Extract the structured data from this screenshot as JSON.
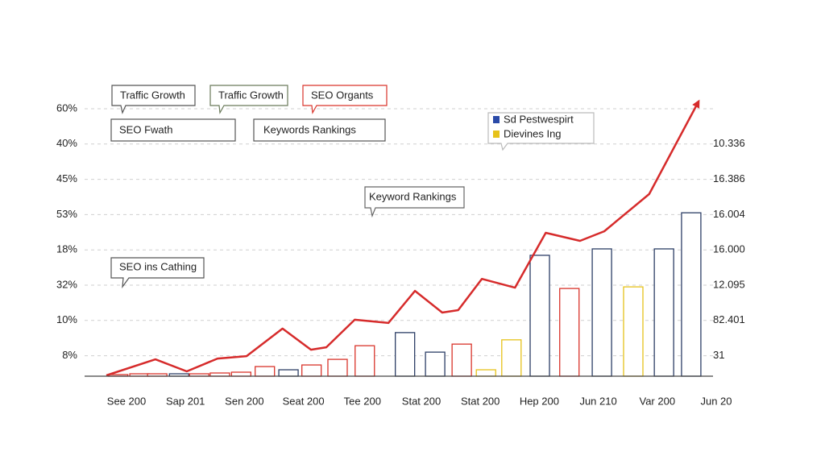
{
  "chart_data": {
    "type": "bar_line",
    "annotations": [
      "Traffic Growth",
      "Traffic Growth",
      "SEO Organts",
      "SEO Fwath",
      "Keywords Rankings",
      "Keyword Rankings",
      "SEO ins Cathing"
    ],
    "y_axis_labels": [
      "60%",
      "40%",
      "45%",
      "53%",
      "18%",
      "32%",
      "10%",
      "8%"
    ],
    "y2_axis_labels": [
      "10.336",
      "16.386",
      "16.004",
      "16.000",
      "12.095",
      "82.401",
      "31"
    ],
    "categories": [
      "See 200",
      "Sap 201",
      "Sen 200",
      "Seat 200",
      "Tee 200",
      "Stat 200",
      "Stat 200",
      "Hep 200",
      "Jun 210",
      "Var 200",
      "Jun 20"
    ],
    "xlim": [
      0,
      100
    ],
    "ylim": [
      0,
      100
    ],
    "grid": true,
    "legend": {
      "position": "top-right",
      "entries": [
        {
          "name": "Sd Pestwespirt",
          "color": "#2a4aa8"
        },
        {
          "name": "Dievines Ing",
          "color": "#e6c21a"
        }
      ]
    },
    "bars": {
      "x": [
        2.0,
        5.6,
        8.6,
        12.3,
        15.7,
        19.2,
        22.8,
        26.8,
        30.8,
        34.7,
        39.1,
        43.7,
        50.5,
        55.6,
        60.1,
        64.2,
        68.5,
        73.3,
        78.3,
        83.8,
        89.1,
        94.3,
        98.9
      ],
      "values": [
        0.6,
        0.9,
        0.9,
        0.9,
        0.9,
        1.2,
        1.5,
        3.6,
        2.4,
        4.2,
        6.3,
        11.4,
        16.3,
        9.0,
        12.0,
        2.4,
        13.6,
        45.2,
        32.8,
        47.6,
        33.4,
        47.6,
        61.1
      ],
      "colors": [
        "#d9342b",
        "#d9342b",
        "#d9342b",
        "#2c3e66",
        "#d9342b",
        "#d9342b",
        "#d9342b",
        "#d9342b",
        "#2c3e66",
        "#d9342b",
        "#d9342b",
        "#d9342b",
        "#2c3e66",
        "#2c3e66",
        "#d9342b",
        "#e6c21a",
        "#e6c21a",
        "#2c3e66",
        "#d9342b",
        "#2c3e66",
        "#e6c21a",
        "#2c3e66",
        "#2c3e66"
      ]
    },
    "line": {
      "color": "#d62b2b",
      "x": [
        0,
        8.3,
        13.6,
        18.8,
        23.7,
        29.8,
        34.6,
        37.2,
        42.0,
        47.7,
        52.2,
        56.8,
        59.5,
        63.5,
        69.1,
        74.3,
        80.1,
        84.2,
        91.8,
        100
      ],
      "values": [
        0.3,
        6.3,
        1.8,
        6.6,
        7.5,
        17.8,
        9.9,
        10.8,
        21.1,
        19.9,
        31.9,
        23.8,
        24.7,
        36.4,
        33.1,
        53.6,
        50.6,
        54.2,
        68.1,
        102.1
      ]
    }
  }
}
